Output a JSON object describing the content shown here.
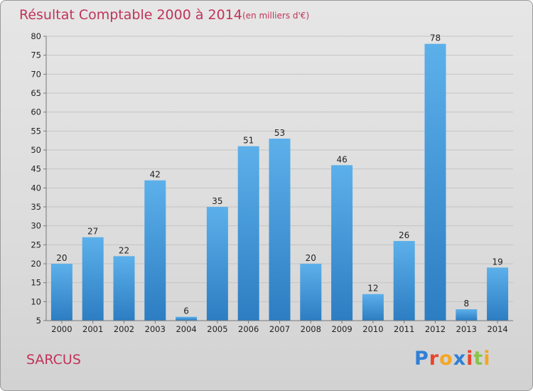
{
  "chart_data": {
    "type": "bar",
    "title": "Résultat Comptable 2000 à 2014",
    "subtitle": "(en milliers d'€)",
    "categories": [
      "2000",
      "2001",
      "2002",
      "2003",
      "2004",
      "2005",
      "2006",
      "2007",
      "2008",
      "2009",
      "2010",
      "2011",
      "2012",
      "2013",
      "2014"
    ],
    "values": [
      20,
      27,
      22,
      42,
      6,
      35,
      51,
      53,
      20,
      46,
      12,
      26,
      78,
      8,
      19
    ],
    "ylim": [
      5,
      80
    ],
    "yticks": [
      5,
      10,
      15,
      20,
      25,
      30,
      35,
      40,
      45,
      50,
      55,
      60,
      65,
      70,
      75,
      80
    ],
    "xlabel": "",
    "ylabel": "",
    "grid": true,
    "colors": {
      "bar_light": "#5aaee8",
      "bar_dark": "#2f7fc4",
      "text": "#c0335a"
    }
  },
  "place_name": "SARCUS",
  "brand": {
    "text": "Proxiti",
    "letters": [
      "P",
      "r",
      "o",
      "x",
      "i",
      "t",
      "i"
    ],
    "letter_colors": [
      "#2f7fd6",
      "#e8452c",
      "#f5a623",
      "#2f7fd6",
      "#e8452c",
      "#8bc34a",
      "#f5a623"
    ]
  }
}
